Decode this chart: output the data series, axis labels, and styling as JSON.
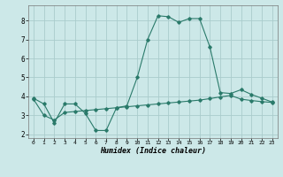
{
  "xlabel": "Humidex (Indice chaleur)",
  "background_color": "#cce8e8",
  "grid_color": "#aacccc",
  "line_color": "#2a7a6a",
  "xlim": [
    -0.5,
    23.5
  ],
  "ylim": [
    1.8,
    8.8
  ],
  "xticks": [
    0,
    1,
    2,
    3,
    4,
    5,
    6,
    7,
    8,
    9,
    10,
    11,
    12,
    13,
    14,
    15,
    16,
    17,
    18,
    19,
    20,
    21,
    22,
    23
  ],
  "yticks": [
    2,
    3,
    4,
    5,
    6,
    7,
    8
  ],
  "line1_x": [
    0,
    1,
    2,
    3,
    4,
    5,
    6,
    7,
    8,
    9,
    10,
    11,
    12,
    13,
    14,
    15,
    16,
    17,
    18,
    19,
    20,
    21,
    22,
    23
  ],
  "line1_y": [
    3.9,
    3.6,
    2.6,
    3.6,
    3.6,
    3.1,
    2.2,
    2.2,
    3.4,
    3.5,
    5.0,
    7.0,
    8.25,
    8.2,
    7.9,
    8.1,
    8.1,
    6.6,
    4.2,
    4.15,
    4.35,
    4.1,
    3.9,
    3.7
  ],
  "line2_x": [
    0,
    1,
    2,
    3,
    4,
    5,
    6,
    7,
    8,
    9,
    10,
    11,
    12,
    13,
    14,
    15,
    16,
    17,
    18,
    19,
    20,
    21,
    22,
    23
  ],
  "line2_y": [
    3.85,
    3.0,
    2.75,
    3.15,
    3.2,
    3.25,
    3.3,
    3.35,
    3.4,
    3.45,
    3.5,
    3.55,
    3.6,
    3.65,
    3.7,
    3.75,
    3.8,
    3.88,
    3.97,
    4.05,
    3.85,
    3.78,
    3.72,
    3.68
  ]
}
